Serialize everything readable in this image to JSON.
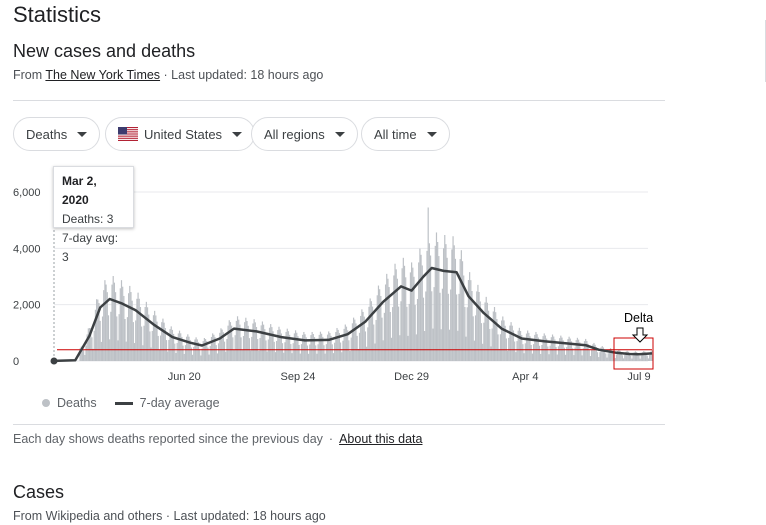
{
  "page_title": "Statistics",
  "section1": {
    "title": "New cases and deaths",
    "source_prefix": "From",
    "source_link": "The New York Times",
    "updated": "· Last updated: 18 hours ago"
  },
  "filters": [
    {
      "label": "Deaths"
    },
    {
      "label": "United States"
    },
    {
      "label": "All regions"
    },
    {
      "label": "All time"
    }
  ],
  "tooltip": {
    "date": "Mar 2, 2020",
    "deaths": "Deaths: 3",
    "avg": "7-day avg: 3"
  },
  "annotation": {
    "label": "Delta",
    "color": "#cc0000"
  },
  "legend": {
    "bars": "Deaths",
    "line": "7-day average"
  },
  "footer": {
    "text": "Each day shows deaths reported since the previous day",
    "link": "About this data"
  },
  "section2": {
    "title": "Cases",
    "prefix": "From",
    "link1": "Wikipedia",
    "and": "and",
    "link2": "others",
    "updated": "· Last updated: 18 hours ago"
  },
  "colors": {
    "bars": "#bdc1c6",
    "avg_line": "#3c4043",
    "reference": "#cc0000",
    "grid": "#e8eaed"
  },
  "chart_data": {
    "type": "bar",
    "x_start": "2020-03-02",
    "x_end": "2021-07-20",
    "ylim": [
      0,
      6000
    ],
    "y_ticks": [
      0,
      2000,
      4000,
      6000
    ],
    "y_tick_labels": [
      "0",
      "2,000",
      "4,000",
      "6,000"
    ],
    "x_tick_labels": [
      {
        "label": "Jun 20",
        "date": "2020-06-20"
      },
      {
        "label": "Sep 24",
        "date": "2020-09-24"
      },
      {
        "label": "Dec 29",
        "date": "2020-12-29"
      },
      {
        "label": "Apr 4",
        "date": "2021-04-04"
      },
      {
        "label": "Jul 9",
        "date": "2021-07-09"
      }
    ],
    "series": [
      {
        "name": "7-day average",
        "points": [
          [
            "2020-03-02",
            3
          ],
          [
            "2020-03-20",
            30
          ],
          [
            "2020-04-01",
            900
          ],
          [
            "2020-04-10",
            1900
          ],
          [
            "2020-04-18",
            2200
          ],
          [
            "2020-04-28",
            2050
          ],
          [
            "2020-05-10",
            1800
          ],
          [
            "2020-05-25",
            1300
          ],
          [
            "2020-06-10",
            850
          ],
          [
            "2020-06-25",
            650
          ],
          [
            "2020-07-05",
            550
          ],
          [
            "2020-07-20",
            800
          ],
          [
            "2020-08-01",
            1150
          ],
          [
            "2020-08-20",
            1050
          ],
          [
            "2020-09-10",
            850
          ],
          [
            "2020-09-30",
            730
          ],
          [
            "2020-10-20",
            750
          ],
          [
            "2020-11-05",
            950
          ],
          [
            "2020-11-20",
            1400
          ],
          [
            "2020-12-05",
            2100
          ],
          [
            "2020-12-20",
            2650
          ],
          [
            "2020-12-29",
            2500
          ],
          [
            "2021-01-08",
            3000
          ],
          [
            "2021-01-15",
            3300
          ],
          [
            "2021-01-25",
            3200
          ],
          [
            "2021-02-05",
            3150
          ],
          [
            "2021-02-15",
            2300
          ],
          [
            "2021-02-28",
            1700
          ],
          [
            "2021-03-15",
            1150
          ],
          [
            "2021-04-01",
            800
          ],
          [
            "2021-04-20",
            700
          ],
          [
            "2021-05-10",
            620
          ],
          [
            "2021-05-25",
            560
          ],
          [
            "2021-06-05",
            400
          ],
          [
            "2021-06-20",
            290
          ],
          [
            "2021-07-01",
            250
          ],
          [
            "2021-07-09",
            240
          ],
          [
            "2021-07-20",
            270
          ]
        ]
      }
    ],
    "bar_peak": [
      "2021-01-12",
      5450
    ],
    "reference_line_y": 400
  }
}
